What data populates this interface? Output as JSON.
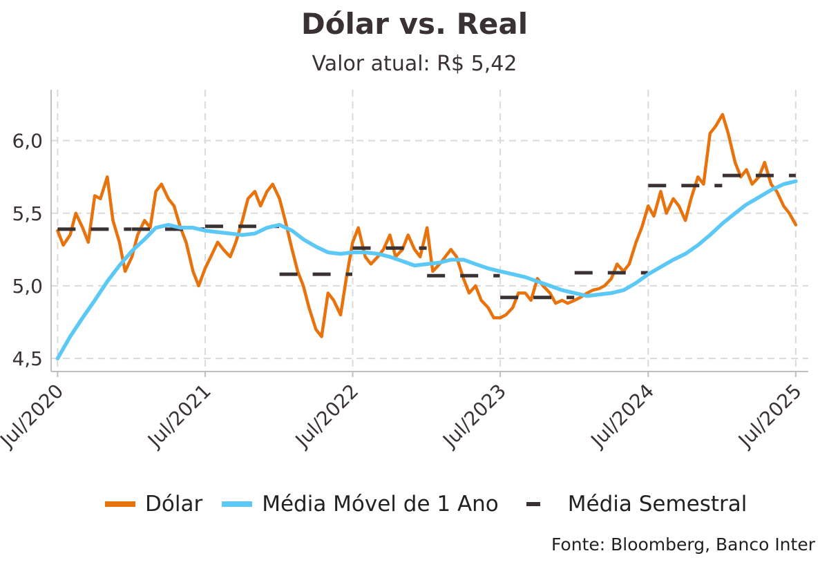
{
  "title": "Dólar vs. Real",
  "subtitle": "Valor atual: R$ 5,42",
  "source": "Fonte: Bloomberg, Banco Inter",
  "colors": {
    "dolar": "#E8720C",
    "moving_avg": "#5CC8F5",
    "semester_avg": "#3A3232",
    "grid": "#DADADA",
    "axis": "#BFBFBF",
    "text": "#3A3232"
  },
  "legend": [
    {
      "label": "Dólar",
      "series": "dolar"
    },
    {
      "label": "Média Móvel de 1 Ano",
      "series": "moving_avg"
    },
    {
      "label": "Média Semestral",
      "series": "semester_avg"
    }
  ],
  "chart_data": {
    "type": "line",
    "title": "Dólar vs. Real",
    "subtitle": "Valor atual: R$ 5,42",
    "xlabel": "",
    "ylabel": "",
    "x_ticks": [
      "Jul/2020",
      "Jul/2021",
      "Jul/2022",
      "Jul/2023",
      "Jul/2024",
      "Jul/2025"
    ],
    "y_ticks": [
      "4,5",
      "5,0",
      "5,5",
      "6,0"
    ],
    "ylim": [
      4.41,
      6.35
    ],
    "xlim": [
      "2020-06-15",
      "2025-08-01"
    ],
    "grid": true,
    "legend_position": "bottom",
    "series": [
      {
        "name": "Dólar",
        "key": "dolar",
        "points": [
          [
            "2020-07-01",
            5.38
          ],
          [
            "2020-07-15",
            5.28
          ],
          [
            "2020-08-01",
            5.35
          ],
          [
            "2020-08-15",
            5.5
          ],
          [
            "2020-09-01",
            5.4
          ],
          [
            "2020-09-15",
            5.3
          ],
          [
            "2020-10-01",
            5.62
          ],
          [
            "2020-10-15",
            5.6
          ],
          [
            "2020-11-01",
            5.75
          ],
          [
            "2020-11-15",
            5.45
          ],
          [
            "2020-12-01",
            5.3
          ],
          [
            "2020-12-15",
            5.1
          ],
          [
            "2021-01-01",
            5.2
          ],
          [
            "2021-01-15",
            5.35
          ],
          [
            "2021-02-01",
            5.45
          ],
          [
            "2021-02-15",
            5.4
          ],
          [
            "2021-03-01",
            5.65
          ],
          [
            "2021-03-15",
            5.7
          ],
          [
            "2021-04-01",
            5.6
          ],
          [
            "2021-04-15",
            5.55
          ],
          [
            "2021-05-01",
            5.4
          ],
          [
            "2021-05-15",
            5.3
          ],
          [
            "2021-06-01",
            5.1
          ],
          [
            "2021-06-15",
            5.0
          ],
          [
            "2021-07-01",
            5.12
          ],
          [
            "2021-07-15",
            5.2
          ],
          [
            "2021-08-01",
            5.3
          ],
          [
            "2021-08-15",
            5.25
          ],
          [
            "2021-09-01",
            5.2
          ],
          [
            "2021-09-15",
            5.3
          ],
          [
            "2021-10-01",
            5.45
          ],
          [
            "2021-10-15",
            5.6
          ],
          [
            "2021-11-01",
            5.65
          ],
          [
            "2021-11-15",
            5.55
          ],
          [
            "2021-12-01",
            5.65
          ],
          [
            "2021-12-15",
            5.7
          ],
          [
            "2022-01-01",
            5.6
          ],
          [
            "2022-01-15",
            5.45
          ],
          [
            "2022-02-01",
            5.25
          ],
          [
            "2022-02-15",
            5.1
          ],
          [
            "2022-03-01",
            5.0
          ],
          [
            "2022-03-15",
            4.85
          ],
          [
            "2022-04-01",
            4.7
          ],
          [
            "2022-04-15",
            4.65
          ],
          [
            "2022-05-01",
            4.95
          ],
          [
            "2022-05-15",
            4.9
          ],
          [
            "2022-06-01",
            4.8
          ],
          [
            "2022-06-15",
            5.05
          ],
          [
            "2022-07-01",
            5.3
          ],
          [
            "2022-07-15",
            5.4
          ],
          [
            "2022-08-01",
            5.2
          ],
          [
            "2022-08-15",
            5.15
          ],
          [
            "2022-09-01",
            5.2
          ],
          [
            "2022-09-15",
            5.25
          ],
          [
            "2022-10-01",
            5.35
          ],
          [
            "2022-10-15",
            5.2
          ],
          [
            "2022-11-01",
            5.25
          ],
          [
            "2022-11-15",
            5.35
          ],
          [
            "2022-12-01",
            5.25
          ],
          [
            "2022-12-15",
            5.2
          ],
          [
            "2023-01-01",
            5.4
          ],
          [
            "2023-01-15",
            5.1
          ],
          [
            "2023-02-01",
            5.15
          ],
          [
            "2023-02-15",
            5.2
          ],
          [
            "2023-03-01",
            5.25
          ],
          [
            "2023-03-15",
            5.2
          ],
          [
            "2023-04-01",
            5.05
          ],
          [
            "2023-04-15",
            4.95
          ],
          [
            "2023-05-01",
            5.0
          ],
          [
            "2023-05-15",
            4.9
          ],
          [
            "2023-06-01",
            4.85
          ],
          [
            "2023-06-15",
            4.78
          ],
          [
            "2023-07-01",
            4.78
          ],
          [
            "2023-07-15",
            4.8
          ],
          [
            "2023-08-01",
            4.85
          ],
          [
            "2023-08-15",
            4.95
          ],
          [
            "2023-09-01",
            4.95
          ],
          [
            "2023-09-15",
            4.9
          ],
          [
            "2023-10-01",
            5.05
          ],
          [
            "2023-10-15",
            5.0
          ],
          [
            "2023-11-01",
            4.95
          ],
          [
            "2023-11-15",
            4.88
          ],
          [
            "2023-12-01",
            4.9
          ],
          [
            "2023-12-15",
            4.88
          ],
          [
            "2024-01-01",
            4.9
          ],
          [
            "2024-01-15",
            4.92
          ],
          [
            "2024-02-01",
            4.95
          ],
          [
            "2024-02-15",
            4.97
          ],
          [
            "2024-03-01",
            4.98
          ],
          [
            "2024-03-15",
            5.0
          ],
          [
            "2024-04-01",
            5.05
          ],
          [
            "2024-04-15",
            5.15
          ],
          [
            "2024-05-01",
            5.1
          ],
          [
            "2024-05-15",
            5.15
          ],
          [
            "2024-06-01",
            5.3
          ],
          [
            "2024-06-15",
            5.4
          ],
          [
            "2024-07-01",
            5.55
          ],
          [
            "2024-07-15",
            5.48
          ],
          [
            "2024-08-01",
            5.65
          ],
          [
            "2024-08-15",
            5.5
          ],
          [
            "2024-09-01",
            5.6
          ],
          [
            "2024-09-15",
            5.55
          ],
          [
            "2024-10-01",
            5.45
          ],
          [
            "2024-10-15",
            5.6
          ],
          [
            "2024-11-01",
            5.75
          ],
          [
            "2024-11-15",
            5.7
          ],
          [
            "2024-12-01",
            6.05
          ],
          [
            "2024-12-15",
            6.1
          ],
          [
            "2025-01-01",
            6.18
          ],
          [
            "2025-01-15",
            6.05
          ],
          [
            "2025-02-01",
            5.85
          ],
          [
            "2025-02-15",
            5.75
          ],
          [
            "2025-03-01",
            5.8
          ],
          [
            "2025-03-15",
            5.7
          ],
          [
            "2025-04-01",
            5.75
          ],
          [
            "2025-04-15",
            5.85
          ],
          [
            "2025-05-01",
            5.7
          ],
          [
            "2025-05-15",
            5.65
          ],
          [
            "2025-06-01",
            5.55
          ],
          [
            "2025-06-15",
            5.5
          ],
          [
            "2025-07-01",
            5.42
          ]
        ]
      },
      {
        "name": "Média Móvel de 1 Ano",
        "key": "moving_avg",
        "points": [
          [
            "2020-07-01",
            4.5
          ],
          [
            "2020-08-01",
            4.65
          ],
          [
            "2020-09-01",
            4.78
          ],
          [
            "2020-10-01",
            4.9
          ],
          [
            "2020-11-01",
            5.03
          ],
          [
            "2020-12-01",
            5.14
          ],
          [
            "2021-01-01",
            5.24
          ],
          [
            "2021-02-01",
            5.32
          ],
          [
            "2021-03-01",
            5.4
          ],
          [
            "2021-04-01",
            5.42
          ],
          [
            "2021-05-01",
            5.4
          ],
          [
            "2021-06-01",
            5.4
          ],
          [
            "2021-07-01",
            5.38
          ],
          [
            "2021-08-01",
            5.37
          ],
          [
            "2021-09-01",
            5.36
          ],
          [
            "2021-10-01",
            5.35
          ],
          [
            "2021-11-01",
            5.36
          ],
          [
            "2021-12-01",
            5.4
          ],
          [
            "2022-01-01",
            5.42
          ],
          [
            "2022-02-01",
            5.38
          ],
          [
            "2022-03-01",
            5.32
          ],
          [
            "2022-04-01",
            5.27
          ],
          [
            "2022-05-01",
            5.23
          ],
          [
            "2022-06-01",
            5.22
          ],
          [
            "2022-07-01",
            5.23
          ],
          [
            "2022-08-01",
            5.23
          ],
          [
            "2022-09-01",
            5.22
          ],
          [
            "2022-10-01",
            5.2
          ],
          [
            "2022-11-01",
            5.17
          ],
          [
            "2022-12-01",
            5.14
          ],
          [
            "2023-01-01",
            5.15
          ],
          [
            "2023-02-01",
            5.16
          ],
          [
            "2023-03-01",
            5.18
          ],
          [
            "2023-04-01",
            5.18
          ],
          [
            "2023-05-01",
            5.15
          ],
          [
            "2023-06-01",
            5.12
          ],
          [
            "2023-07-01",
            5.1
          ],
          [
            "2023-08-01",
            5.08
          ],
          [
            "2023-09-01",
            5.06
          ],
          [
            "2023-10-01",
            5.03
          ],
          [
            "2023-11-01",
            5.0
          ],
          [
            "2023-12-01",
            4.97
          ],
          [
            "2024-01-01",
            4.95
          ],
          [
            "2024-02-01",
            4.93
          ],
          [
            "2024-03-01",
            4.94
          ],
          [
            "2024-04-01",
            4.95
          ],
          [
            "2024-05-01",
            4.97
          ],
          [
            "2024-06-01",
            5.02
          ],
          [
            "2024-07-01",
            5.08
          ],
          [
            "2024-08-01",
            5.13
          ],
          [
            "2024-09-01",
            5.18
          ],
          [
            "2024-10-01",
            5.22
          ],
          [
            "2024-11-01",
            5.28
          ],
          [
            "2024-12-01",
            5.35
          ],
          [
            "2025-01-01",
            5.43
          ],
          [
            "2025-02-01",
            5.5
          ],
          [
            "2025-03-01",
            5.56
          ],
          [
            "2025-04-01",
            5.61
          ],
          [
            "2025-05-01",
            5.66
          ],
          [
            "2025-06-01",
            5.7
          ],
          [
            "2025-07-01",
            5.72
          ]
        ]
      },
      {
        "name": "Média Semestral",
        "key": "semester_avg",
        "segments": [
          {
            "start": "2020-07-01",
            "end": "2020-12-31",
            "value": 5.39
          },
          {
            "start": "2021-01-01",
            "end": "2021-06-30",
            "value": 5.39
          },
          {
            "start": "2021-07-01",
            "end": "2021-12-31",
            "value": 5.41
          },
          {
            "start": "2022-01-01",
            "end": "2022-06-30",
            "value": 5.08
          },
          {
            "start": "2022-07-01",
            "end": "2022-12-31",
            "value": 5.26
          },
          {
            "start": "2023-01-01",
            "end": "2023-06-30",
            "value": 5.07
          },
          {
            "start": "2023-07-01",
            "end": "2023-12-31",
            "value": 4.92
          },
          {
            "start": "2024-01-01",
            "end": "2024-06-30",
            "value": 5.09
          },
          {
            "start": "2024-07-01",
            "end": "2024-12-31",
            "value": 5.69
          },
          {
            "start": "2025-01-01",
            "end": "2025-07-01",
            "value": 5.76
          }
        ]
      }
    ]
  }
}
